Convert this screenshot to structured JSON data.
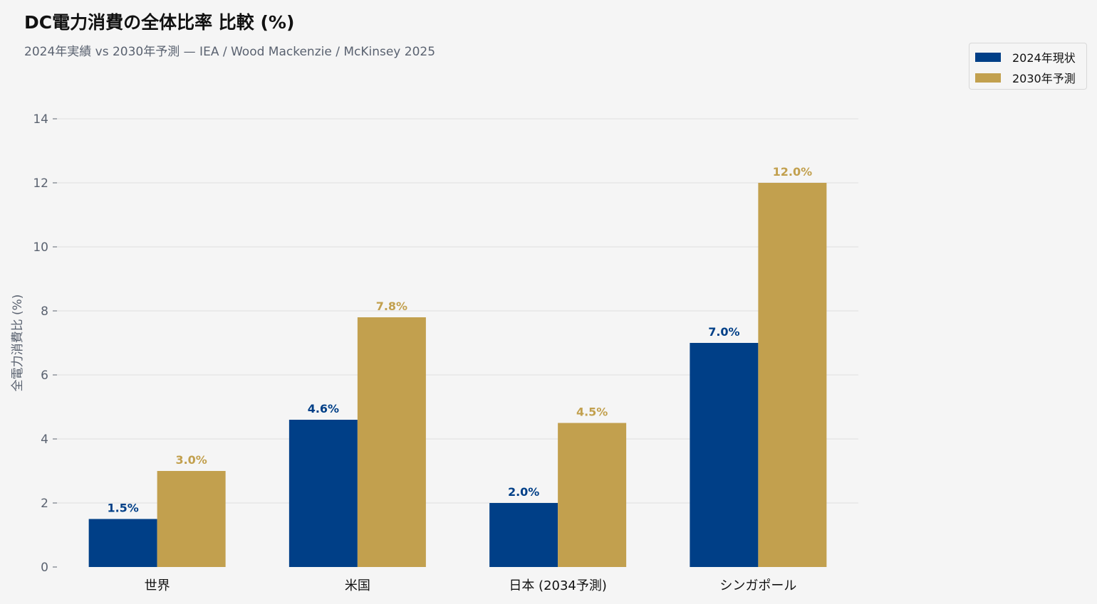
{
  "chart_data": {
    "type": "bar",
    "title": "DC電力消費の全体比率 比較 (%)",
    "subtitle": "2024年実績 vs 2030年予測 — IEA / Wood Mackenzie / McKinsey 2025",
    "xlabel": "",
    "ylabel": "全電力消費比 (%)",
    "ylim": [
      0,
      14
    ],
    "yticks": [
      0,
      2,
      4,
      6,
      8,
      10,
      12,
      14
    ],
    "grid": true,
    "legend_position": "top-right",
    "categories": [
      "世界",
      "米国",
      "日本 (2034予測)",
      "シンガポール"
    ],
    "series": [
      {
        "name": "2024年現状",
        "color": "#003f87",
        "values": [
          1.5,
          4.6,
          2.0,
          7.0
        ],
        "labels": [
          "1.5%",
          "4.6%",
          "2.0%",
          "7.0%"
        ]
      },
      {
        "name": "2030年予測",
        "color": "#c2a04e",
        "values": [
          3.0,
          7.8,
          4.5,
          12.0
        ],
        "labels": [
          "3.0%",
          "7.8%",
          "4.5%",
          "12.0%"
        ]
      }
    ]
  }
}
